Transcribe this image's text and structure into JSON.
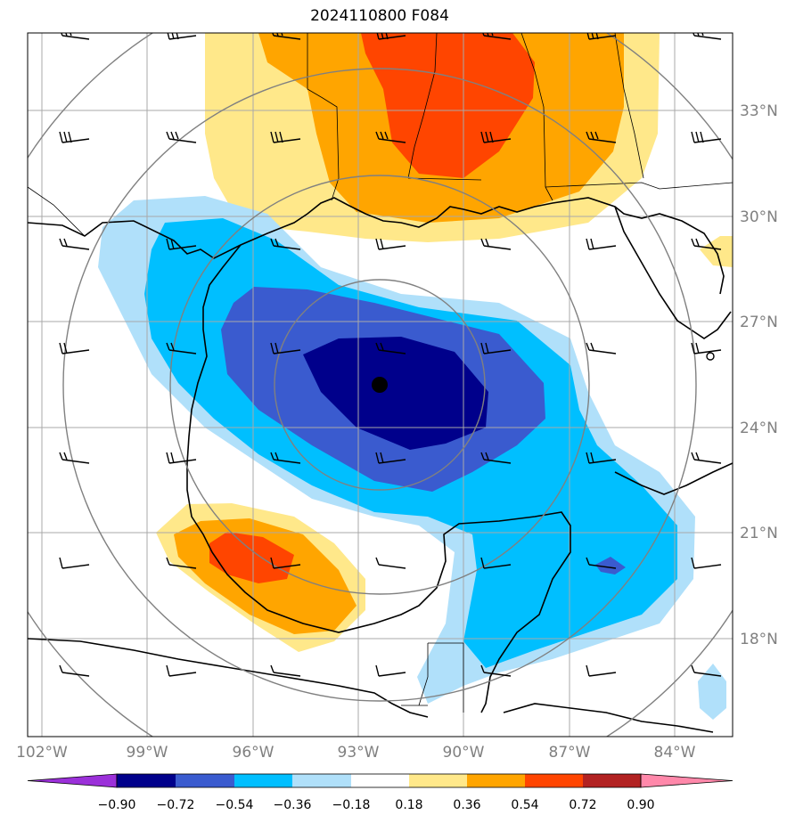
{
  "title": "2024110800 F084",
  "lon_labels": [
    "102°W",
    "99°W",
    "96°W",
    "93°W",
    "90°W",
    "87°W",
    "84°W"
  ],
  "lat_labels": [
    "33°N",
    "30°N",
    "27°N",
    "24°N",
    "21°N",
    "18°N"
  ],
  "colorbar": {
    "ticks": [
      "−0.90",
      "−0.72",
      "−0.54",
      "−0.36",
      "−0.18",
      "0.18",
      "0.36",
      "0.54",
      "0.72",
      "0.90"
    ],
    "colors": [
      "#9b30d9",
      "#00008b",
      "#3a5bcf",
      "#00bfff",
      "#b0e0fa",
      "#ffffff",
      "#ffe88a",
      "#ffa500",
      "#ff4500",
      "#b22222",
      "#ff88aa"
    ]
  },
  "storm_center": {
    "lon": -92.5,
    "lat": 25.2
  },
  "colors": {
    "grid": "#a9a9a9",
    "range_rings": "#808080",
    "coast": "#000000"
  }
}
